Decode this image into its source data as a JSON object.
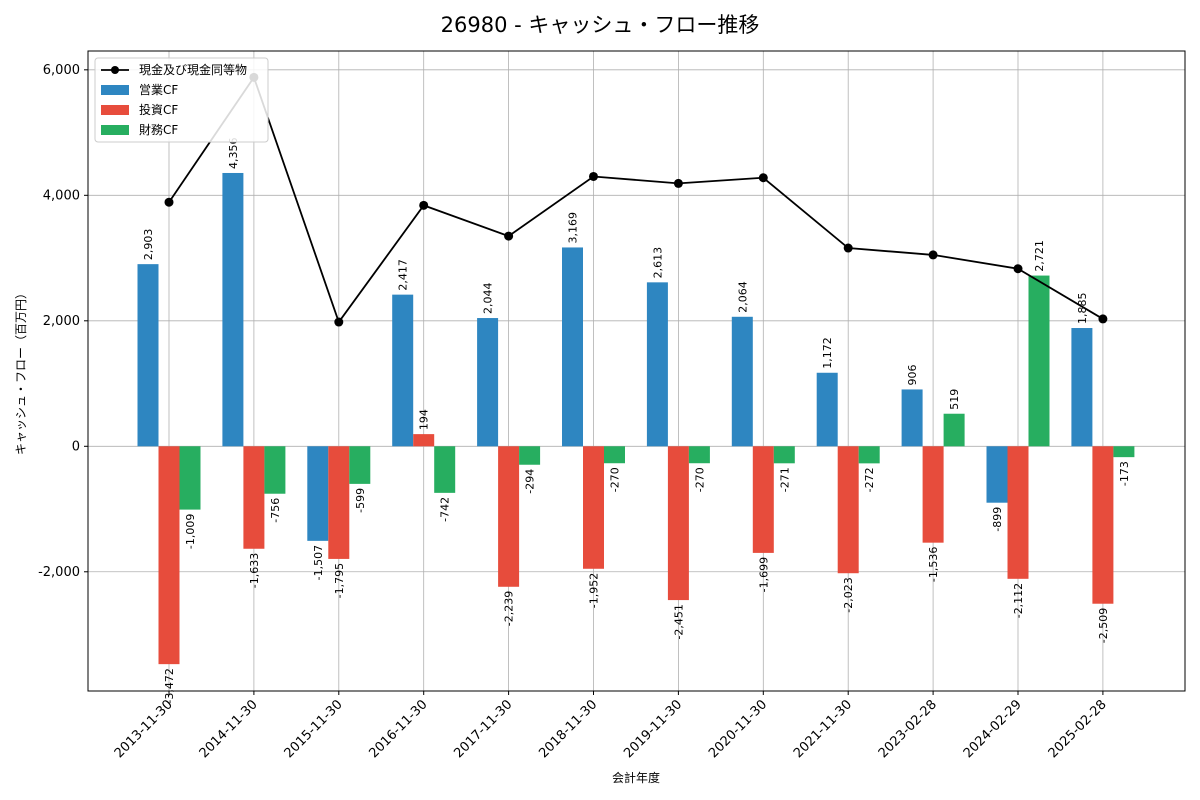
{
  "chart_data": {
    "type": "bar",
    "title": "26980 - キャッシュ・フロー推移",
    "xlabel": "会計年度",
    "ylabel": "キャッシュ・フロー（百万円）",
    "ylim": [
      -3900,
      6300
    ],
    "yticks": [
      -2000,
      0,
      2000,
      4000,
      6000
    ],
    "ytick_labels": [
      "-2,000",
      "0",
      "2,000",
      "4,000",
      "6,000"
    ],
    "grid": true,
    "legend_position": "top-left",
    "categories": [
      "2013-11-30",
      "2014-11-30",
      "2015-11-30",
      "2016-11-30",
      "2017-11-30",
      "2018-11-30",
      "2019-11-30",
      "2020-11-30",
      "2021-11-30",
      "2023-02-28",
      "2024-02-29",
      "2025-02-28"
    ],
    "series": [
      {
        "name": "営業CF",
        "kind": "bar",
        "color": "#2e86c1",
        "values": [
          2903,
          4356,
          -1507,
          2417,
          2044,
          3169,
          2613,
          2064,
          1172,
          906,
          -899,
          1885
        ],
        "labels": [
          "2,903",
          "4,356",
          "-1,507",
          "2,417",
          "2,044",
          "3,169",
          "2,613",
          "2,064",
          "1,172",
          "906",
          "-899",
          "1,885"
        ]
      },
      {
        "name": "投資CF",
        "kind": "bar",
        "color": "#e74c3c",
        "values": [
          -3472,
          -1633,
          -1795,
          194,
          -2239,
          -1952,
          -2451,
          -1699,
          -2023,
          -1536,
          -2112,
          -2509
        ],
        "labels": [
          "-3,472",
          "-1,633",
          "-1,795",
          "194",
          "-2,239",
          "-1,952",
          "-2,451",
          "-1,699",
          "-2,023",
          "-1,536",
          "-2,112",
          "-2,509"
        ]
      },
      {
        "name": "財務CF",
        "kind": "bar",
        "color": "#27ae60",
        "values": [
          -1009,
          -756,
          -599,
          -742,
          -294,
          -270,
          -270,
          -271,
          -272,
          519,
          2721,
          -173
        ],
        "labels": [
          "-1,009",
          "-756",
          "-599",
          "-742",
          "-294",
          "-270",
          "-270",
          "-271",
          "-272",
          "519",
          "2,721",
          "-173"
        ]
      },
      {
        "name": "現金及び現金同等物",
        "kind": "line",
        "color": "#000000",
        "values": [
          3890,
          5880,
          1980,
          3840,
          3350,
          4300,
          4190,
          4280,
          3160,
          3050,
          2830,
          2030
        ]
      }
    ]
  }
}
